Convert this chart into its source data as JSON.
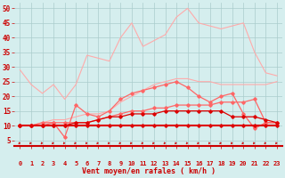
{
  "x": [
    0,
    1,
    2,
    3,
    4,
    5,
    6,
    7,
    8,
    9,
    10,
    11,
    12,
    13,
    14,
    15,
    16,
    17,
    18,
    19,
    20,
    21,
    22,
    23
  ],
  "series": [
    {
      "name": "line1_light",
      "color": "#ffaaaa",
      "lw": 0.8,
      "marker": null,
      "markersize": 0,
      "values": [
        29,
        24,
        21,
        24,
        19,
        24,
        34,
        33,
        32,
        40,
        45,
        37,
        39,
        41,
        47,
        50,
        45,
        44,
        43,
        44,
        45,
        35,
        28,
        27
      ]
    },
    {
      "name": "line2_light",
      "color": "#ffaaaa",
      "lw": 0.8,
      "marker": null,
      "markersize": 0,
      "values": [
        10,
        10,
        11,
        12,
        12,
        13,
        14,
        14,
        15,
        18,
        20,
        22,
        24,
        25,
        26,
        26,
        25,
        25,
        24,
        24,
        24,
        24,
        24,
        25
      ]
    },
    {
      "name": "line3_med",
      "color": "#ff6666",
      "lw": 0.9,
      "marker": "D",
      "markersize": 1.8,
      "values": [
        10,
        10,
        11,
        11,
        6,
        17,
        14,
        13,
        15,
        19,
        21,
        22,
        23,
        24,
        25,
        23,
        20,
        18,
        20,
        21,
        14,
        9,
        11,
        11
      ]
    },
    {
      "name": "line4_med",
      "color": "#ff6666",
      "lw": 0.9,
      "marker": "D",
      "markersize": 1.8,
      "values": [
        10,
        10,
        10,
        11,
        11,
        11,
        11,
        12,
        13,
        14,
        15,
        15,
        16,
        16,
        17,
        17,
        17,
        17,
        18,
        18,
        18,
        19,
        11,
        11
      ]
    },
    {
      "name": "line5_dark",
      "color": "#dd0000",
      "lw": 1.5,
      "marker": "D",
      "markersize": 1.8,
      "values": [
        10,
        10,
        10,
        10,
        10,
        10,
        10,
        10,
        10,
        10,
        10,
        10,
        10,
        10,
        10,
        10,
        10,
        10,
        10,
        10,
        10,
        10,
        10,
        10
      ]
    },
    {
      "name": "line6_dark",
      "color": "#dd0000",
      "lw": 0.9,
      "marker": "D",
      "markersize": 1.8,
      "values": [
        10,
        10,
        10,
        10,
        10,
        11,
        11,
        12,
        13,
        13,
        14,
        14,
        14,
        15,
        15,
        15,
        15,
        15,
        15,
        13,
        13,
        13,
        12,
        11
      ]
    }
  ],
  "xlabel": "Vent moyen/en rafales ( km/h )",
  "xlim": [
    -0.5,
    23.5
  ],
  "ylim": [
    3,
    52
  ],
  "yticks": [
    5,
    10,
    15,
    20,
    25,
    30,
    35,
    40,
    45,
    50
  ],
  "xticks": [
    0,
    1,
    2,
    3,
    4,
    5,
    6,
    7,
    8,
    9,
    10,
    11,
    12,
    13,
    14,
    15,
    16,
    17,
    18,
    19,
    20,
    21,
    22,
    23
  ],
  "bg_color": "#d5eeee",
  "grid_color": "#aacccc",
  "tick_color": "#cc0000",
  "label_color": "#cc0000",
  "arrow_color": "#cc2222",
  "spine_color": "#cc0000"
}
